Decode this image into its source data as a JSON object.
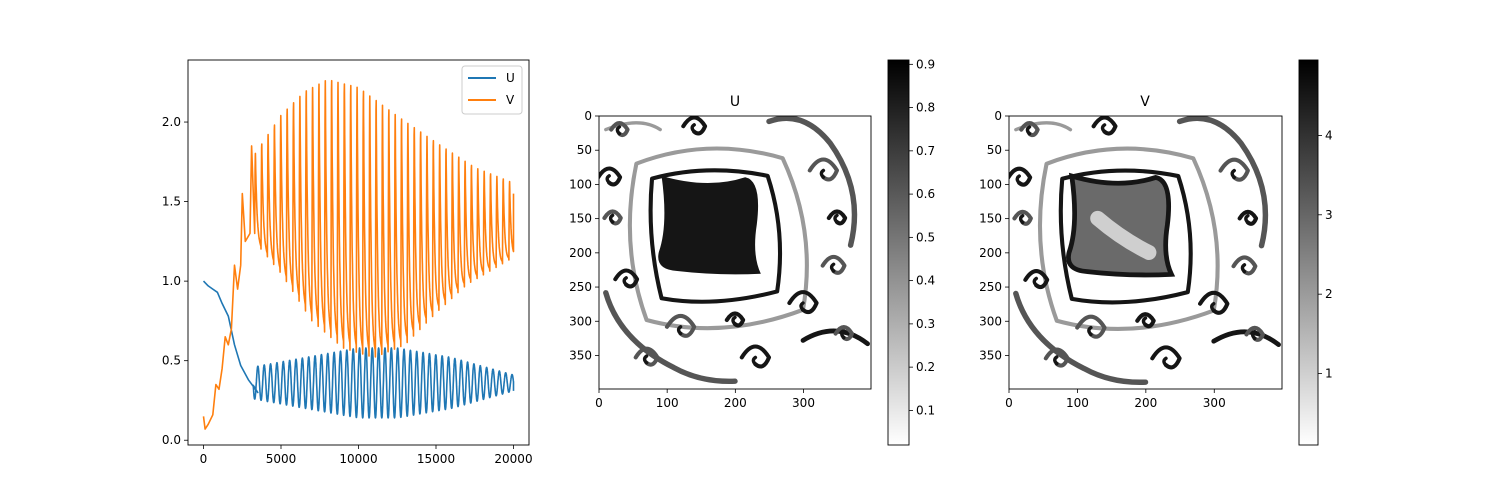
{
  "chart_data": [
    {
      "type": "line",
      "xlim": [
        -1000,
        21000
      ],
      "ylim": [
        -0.03,
        2.39
      ],
      "xticks": [
        0,
        5000,
        10000,
        15000,
        20000
      ],
      "yticks": [
        0.0,
        0.5,
        1.0,
        1.5,
        2.0
      ],
      "xtick_labels": [
        "0",
        "5000",
        "10000",
        "15000",
        "20000"
      ],
      "ytick_labels": [
        "0.0",
        "0.5",
        "1.0",
        "1.5",
        "2.0"
      ],
      "legend_position": "top-right",
      "series": [
        {
          "name": "U",
          "color": "#1f77b4",
          "points": [
            [
              0,
              1.0
            ],
            [
              300,
              0.97
            ],
            [
              600,
              0.95
            ],
            [
              900,
              0.93
            ],
            [
              1200,
              0.86
            ],
            [
              1600,
              0.78
            ],
            [
              2000,
              0.6
            ],
            [
              2400,
              0.47
            ],
            [
              2900,
              0.38
            ],
            [
              3500,
              0.3
            ]
          ],
          "oscillation": {
            "x_start": 3200,
            "x_end": 20000,
            "period": 410,
            "baseline": 0.36,
            "amplitude_envelope": [
              [
                3200,
                0.1
              ],
              [
                6000,
                0.15
              ],
              [
                10000,
                0.22
              ],
              [
                12500,
                0.22
              ],
              [
                16000,
                0.16
              ],
              [
                20000,
                0.05
              ]
            ],
            "end_value": 0.31
          }
        },
        {
          "name": "V",
          "color": "#ff7f0e",
          "points": [
            [
              0,
              0.15
            ],
            [
              100,
              0.07
            ],
            [
              300,
              0.1
            ],
            [
              600,
              0.16
            ],
            [
              800,
              0.35
            ],
            [
              1000,
              0.32
            ],
            [
              1200,
              0.45
            ],
            [
              1400,
              0.65
            ],
            [
              1600,
              0.6
            ],
            [
              1800,
              0.7
            ],
            [
              2000,
              1.1
            ],
            [
              2200,
              0.95
            ],
            [
              2400,
              1.1
            ],
            [
              2500,
              1.55
            ],
            [
              2700,
              1.25
            ],
            [
              3000,
              1.3
            ],
            [
              3100,
              1.85
            ],
            [
              3300,
              1.3
            ]
          ],
          "oscillation": {
            "x_start": 3300,
            "x_end": 20000,
            "period": 410,
            "peaks_envelope": [
              [
                3300,
                1.8
              ],
              [
                5000,
                2.05
              ],
              [
                6500,
                2.2
              ],
              [
                8000,
                2.28
              ],
              [
                10000,
                2.23
              ],
              [
                12500,
                2.05
              ],
              [
                15000,
                1.88
              ],
              [
                17500,
                1.72
              ],
              [
                20000,
                1.62
              ]
            ],
            "troughs_envelope": [
              [
                3300,
                1.25
              ],
              [
                5000,
                1.05
              ],
              [
                7000,
                0.75
              ],
              [
                9000,
                0.58
              ],
              [
                11000,
                0.52
              ],
              [
                13000,
                0.6
              ],
              [
                15000,
                0.8
              ],
              [
                17000,
                0.98
              ],
              [
                20000,
                1.15
              ]
            ],
            "end_value": 1.55
          }
        }
      ]
    },
    {
      "type": "heatmap",
      "title": "U",
      "colormap": "gray_r",
      "xlim": [
        0,
        399
      ],
      "ylim": [
        399,
        0
      ],
      "xticks": [
        0,
        100,
        200,
        300
      ],
      "yticks": [
        0,
        50,
        100,
        150,
        200,
        250,
        300,
        350
      ],
      "xtick_labels": [
        "0",
        "100",
        "200",
        "300"
      ],
      "ytick_labels": [
        "0",
        "50",
        "100",
        "150",
        "200",
        "250",
        "300",
        "350"
      ],
      "colorbar": {
        "min": 0.02,
        "max": 0.91,
        "ticks": [
          0.1,
          0.2,
          0.3,
          0.4,
          0.5,
          0.6,
          0.7,
          0.8,
          0.9
        ],
        "tick_labels": [
          "0.1",
          "0.2",
          "0.3",
          "0.4",
          "0.5",
          "0.6",
          "0.7",
          "0.8",
          "0.9"
        ]
      }
    },
    {
      "type": "heatmap",
      "title": "V",
      "colormap": "gray_r",
      "xlim": [
        0,
        399
      ],
      "ylim": [
        399,
        0
      ],
      "xticks": [
        0,
        100,
        200,
        300
      ],
      "yticks": [
        0,
        50,
        100,
        150,
        200,
        250,
        300,
        350
      ],
      "xtick_labels": [
        "0",
        "100",
        "200",
        "300"
      ],
      "ytick_labels": [
        "0",
        "50",
        "100",
        "150",
        "200",
        "250",
        "300",
        "350"
      ],
      "colorbar": {
        "min": 0.1,
        "max": 4.95,
        "ticks": [
          1,
          2,
          3,
          4
        ],
        "tick_labels": [
          "1",
          "2",
          "3",
          "4"
        ]
      }
    }
  ]
}
